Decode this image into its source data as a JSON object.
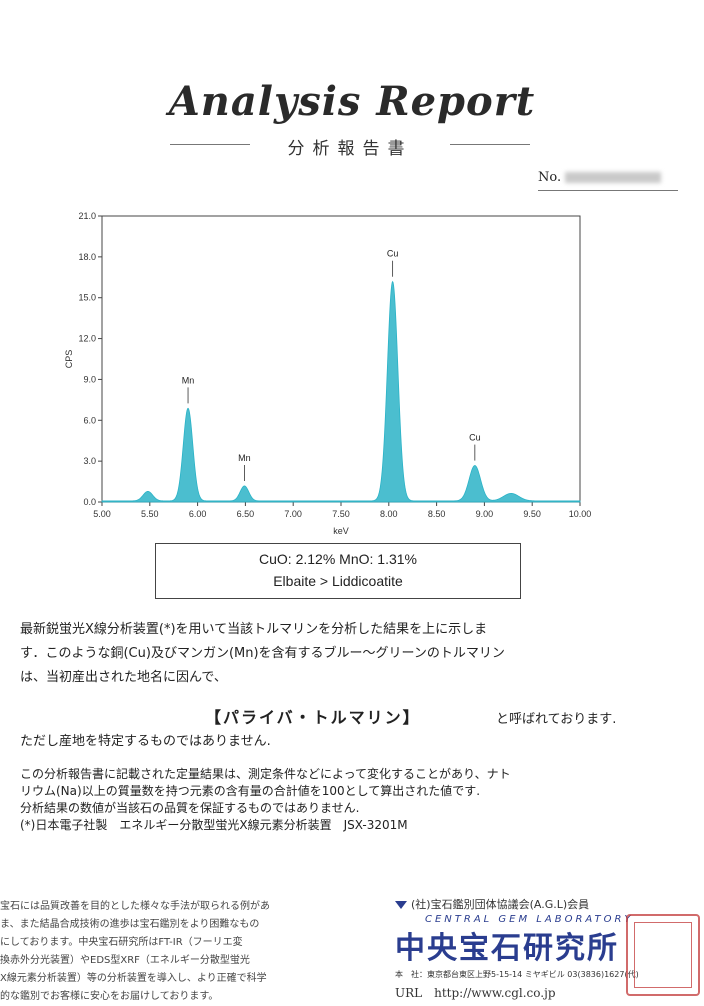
{
  "header": {
    "title": "Analysis   Report",
    "subtitle": "分析報告書",
    "docno_label": "No."
  },
  "chart_data": {
    "type": "line",
    "xlabel": "keV",
    "ylabel": "CPS",
    "xlim": [
      5.0,
      10.0
    ],
    "ylim": [
      0.0,
      21.0
    ],
    "xticks": [
      "5.00",
      "5.50",
      "6.00",
      "6.50",
      "7.00",
      "7.50",
      "8.00",
      "8.50",
      "9.00",
      "9.50",
      "10.00"
    ],
    "yticks": [
      "0.0",
      "3.0",
      "6.0",
      "9.0",
      "12.0",
      "15.0",
      "18.0",
      "21.0"
    ],
    "series": [
      {
        "color": "#2bb3c7",
        "peaks": [
          {
            "x": 5.48,
            "y": 0.7,
            "w": 0.05
          },
          {
            "x": 5.9,
            "y": 6.8,
            "w": 0.05
          },
          {
            "x": 6.49,
            "y": 1.1,
            "w": 0.045
          },
          {
            "x": 8.04,
            "y": 16.1,
            "w": 0.055
          },
          {
            "x": 8.9,
            "y": 2.6,
            "w": 0.06
          },
          {
            "x": 9.28,
            "y": 0.55,
            "w": 0.08
          }
        ]
      }
    ],
    "annotations": [
      {
        "label": "Mn",
        "x": 5.9,
        "y": 6.8
      },
      {
        "label": "Mn",
        "x": 6.49,
        "y": 1.1
      },
      {
        "label": "Cu",
        "x": 8.04,
        "y": 16.1
      },
      {
        "label": "Cu",
        "x": 8.9,
        "y": 2.6
      }
    ]
  },
  "result": {
    "line1": "CuO: 2.12%   MnO: 1.31%",
    "line2": "Elbaite > Liddicoatite"
  },
  "body": {
    "p1": "最新鋭蛍光X線分析装置(*)を用いて当該トルマリンを分析した結果を上に示しま",
    "p2": "す．このような銅(Cu)及びマンガン(Mn)を含有するブルー～グリーンのトルマリン",
    "p3": "は、当初産出された地名に因んで、",
    "name": "【パライバ・トルマリン】",
    "name_tail": "と呼ばれております.",
    "p4": "ただし産地を特定するものではありません."
  },
  "notes": {
    "n1": "この分析報告書に記載された定量結果は、測定条件などによって変化することがあり、ナト",
    "n2": "リウム(Na)以上の質量数を持つ元素の含有量の合計値を100として算出された値です.",
    "n3": "分析結果の数値が当該石の品質を保証するものではありません.",
    "n4": "(*)日本電子社製　エネルギー分散型蛍光X線元素分析装置　JSX-3201M"
  },
  "footer_left": [
    "宝石には品質改善を目的とした様々な手法が取られる例があ",
    "ま、また結晶合成技術の進歩は宝石鑑別をより困難なもの",
    "にしております。中央宝石研究所はFT-IR（フーリエ変",
    "換赤外分光装置）やEDS型XRF（エネルギー分散型蛍光",
    "X線元素分析装置）等の分析装置を導入し、より正確で科学",
    "的な鑑別でお客様に安心をお届けしております。"
  ],
  "footer_right": {
    "assoc": "(社)宝石鑑別団体協議会(A.G.L)会員",
    "en": "CENTRAL GEM LABORATORY",
    "jp": "中央宝石研究所",
    "addr": "本　社：東京都台東区上野5-15-14 ミヤギビル 03(3836)1627(代)",
    "url": "URL　http://www.cgl.co.jp"
  }
}
